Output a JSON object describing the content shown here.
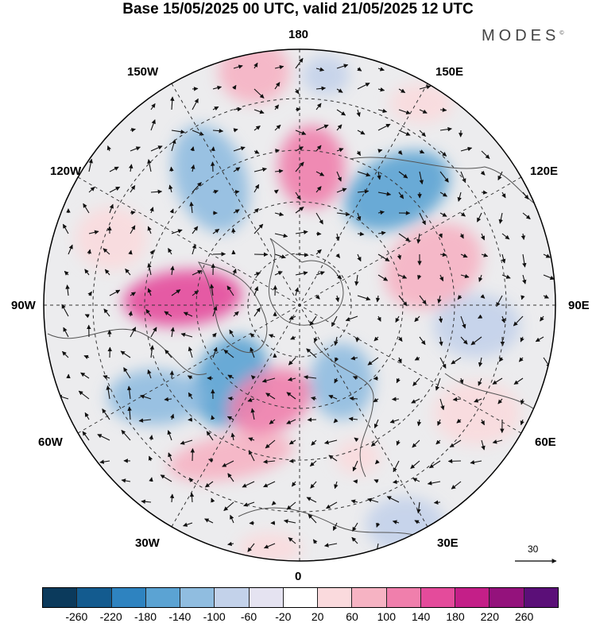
{
  "title": "Base 15/05/2025 00 UTC, valid 21/05/2025 12 UTC",
  "brand": "MODES",
  "brand_mark": "©",
  "longitude_labels": {
    "n180": "180",
    "w150": "150W",
    "e150": "150E",
    "w120": "120W",
    "e120": "120E",
    "w90": "90W",
    "e90": "90E",
    "w60": "60W",
    "e60": "60E",
    "w30": "30W",
    "e30": "30E",
    "zero": "0"
  },
  "reference_vector": "30",
  "colorbar": {
    "colors": [
      "#0b3a5c",
      "#135b8f",
      "#2e83c0",
      "#5ba3d3",
      "#90bde0",
      "#c3d2ea",
      "#e5e3f1",
      "#ffffff",
      "#fadadd",
      "#f6b3c3",
      "#f07fac",
      "#e44b9b",
      "#c41f88",
      "#94127c",
      "#5b0f78"
    ],
    "ticks": [
      "-260",
      "-220",
      "-180",
      "-140",
      "-100",
      "-60",
      "-20",
      "20",
      "60",
      "100",
      "140",
      "180",
      "220",
      "260"
    ]
  },
  "anomaly_regions": [
    {
      "name": "north-pacific-low",
      "color": "#90bde0",
      "level": -140
    },
    {
      "name": "pacific-high",
      "color": "#f07fac",
      "level": 140
    },
    {
      "name": "east-siberia-low",
      "color": "#5ba3d3",
      "level": -180
    },
    {
      "name": "canada-high",
      "color": "#e44b9b",
      "level": 180
    },
    {
      "name": "baffin-low",
      "color": "#5ba3d3",
      "level": -180
    },
    {
      "name": "atlantic-low",
      "color": "#90bde0",
      "level": -140
    },
    {
      "name": "north-atlantic-high",
      "color": "#f07fac",
      "level": 140
    },
    {
      "name": "scandinavia-low",
      "color": "#90bde0",
      "level": -140
    },
    {
      "name": "central-asia-high",
      "color": "#f6b3c3",
      "level": 100
    }
  ]
}
